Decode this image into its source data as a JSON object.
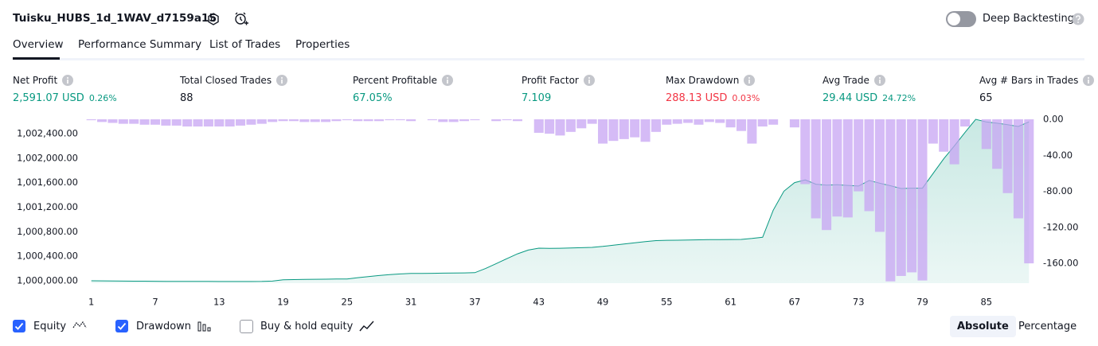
{
  "header": {
    "title": "Tuisku_HUBS_1d_1WAV_d7159a15",
    "toggle_label": "Deep Backtesting",
    "toggle_on": false
  },
  "tabs": [
    {
      "label": "Overview",
      "active": true
    },
    {
      "label": "Performance Summary",
      "active": false
    },
    {
      "label": "List of Trades",
      "active": false
    },
    {
      "label": "Properties",
      "active": false
    }
  ],
  "metrics": [
    {
      "label": "Net Profit",
      "value": "2,591.07 USD",
      "sub": "0.26%",
      "color": "#089981"
    },
    {
      "label": "Total Closed Trades",
      "value": "88",
      "color": "#131722"
    },
    {
      "label": "Percent Profitable",
      "value": "67.05%",
      "color": "#089981"
    },
    {
      "label": "Profit Factor",
      "value": "7.109",
      "color": "#089981"
    },
    {
      "label": "Max Drawdown",
      "value": "288.13 USD",
      "sub": "0.03%",
      "color": "#f23645"
    },
    {
      "label": "Avg Trade",
      "value": "29.44 USD",
      "sub": "24.72%",
      "color": "#089981"
    },
    {
      "label": "Avg # Bars in Trades",
      "value": "65",
      "color": "#131722"
    }
  ],
  "chart_data": {
    "type": "line",
    "x": [
      1,
      2,
      3,
      4,
      5,
      6,
      7,
      8,
      9,
      10,
      11,
      12,
      13,
      14,
      15,
      16,
      17,
      18,
      19,
      20,
      21,
      22,
      23,
      24,
      25,
      26,
      27,
      28,
      29,
      30,
      31,
      32,
      33,
      34,
      35,
      36,
      37,
      38,
      39,
      40,
      41,
      42,
      43,
      44,
      45,
      46,
      47,
      48,
      49,
      50,
      51,
      52,
      53,
      54,
      55,
      56,
      57,
      58,
      59,
      60,
      61,
      62,
      63,
      64,
      65,
      66,
      67,
      68,
      69,
      70,
      71,
      72,
      73,
      74,
      75,
      76,
      77,
      78,
      79,
      80,
      81,
      82,
      83,
      84,
      85,
      86,
      87,
      88,
      89
    ],
    "series": [
      {
        "name": "Equity",
        "color": "#089981",
        "checked": true,
        "axis": "y",
        "values": [
          1000000,
          999998,
          999996,
          999995,
          999994,
          999993,
          999992,
          999991,
          999990,
          999990,
          999989,
          999989,
          999988,
          999988,
          999988,
          999988,
          999989,
          999995,
          1000015,
          1000020,
          1000022,
          1000024,
          1000026,
          1000028,
          1000030,
          1000050,
          1000068,
          1000085,
          1000100,
          1000112,
          1000120,
          1000121,
          1000122,
          1000124,
          1000126,
          1000128,
          1000132,
          1000200,
          1000280,
          1000360,
          1000440,
          1000500,
          1000532,
          1000528,
          1000530,
          1000535,
          1000540,
          1000545,
          1000560,
          1000580,
          1000600,
          1000620,
          1000640,
          1000655,
          1000660,
          1000662,
          1000665,
          1000668,
          1000670,
          1000672,
          1000673,
          1000674,
          1000690,
          1000710,
          1001150,
          1001460,
          1001600,
          1001646,
          1001575,
          1001560,
          1001565,
          1001555,
          1001545,
          1001635,
          1001590,
          1001550,
          1001505,
          1001510,
          1001510,
          1001750,
          1001990,
          1002200,
          1002420,
          1002633,
          1002590,
          1002570,
          1002545,
          1002516,
          1002591
        ]
      },
      {
        "name": "Drawdown",
        "color": "#c7a4f3",
        "checked": true,
        "axis": "y2",
        "type": "bar",
        "values": [
          -1,
          -3,
          -4,
          -5,
          -5,
          -6,
          -6,
          -7,
          -7,
          -8,
          -8,
          -8,
          -8,
          -8,
          -7,
          -6,
          -5,
          -3,
          -2,
          -2,
          -3,
          -3,
          -3,
          -2,
          -1,
          -2,
          -2,
          -2,
          -1,
          -1,
          -2,
          0,
          -1,
          -3,
          -3,
          -2,
          -1,
          0,
          -2,
          -1,
          -2,
          0,
          -15,
          -16,
          -18,
          -14,
          -10,
          -5,
          -27,
          -24,
          -22,
          -20,
          -25,
          -14,
          -6,
          -5,
          -4,
          -6,
          -3,
          -4,
          -9,
          -13,
          -27,
          -8,
          -6,
          0,
          -9,
          -72,
          -110,
          -123,
          -108,
          -109,
          -80,
          -102,
          -125,
          -180,
          -174,
          -170,
          -179,
          -27,
          -36,
          -50,
          -8,
          0,
          -33,
          -55,
          -82,
          -110,
          -160
        ]
      }
    ],
    "xlim": [
      0.5,
      89.5
    ],
    "xticks": [
      1,
      7,
      13,
      19,
      25,
      31,
      37,
      43,
      49,
      55,
      61,
      67,
      73,
      79,
      85
    ],
    "ylim": [
      999961,
      1002698
    ],
    "yticks": [
      {
        "value": 1000000,
        "label": "1,000,000.00"
      },
      {
        "value": 1000400,
        "label": "1,000,400.00"
      },
      {
        "value": 1000800,
        "label": "1,000,800.00"
      },
      {
        "value": 1001200,
        "label": "1,001,200.00"
      },
      {
        "value": 1001600,
        "label": "1,001,600.00"
      },
      {
        "value": 1002000,
        "label": "1,002,000.00"
      },
      {
        "value": 1002400,
        "label": "1,002,400.00"
      }
    ],
    "y2lim": [
      -182,
      4.4
    ],
    "y2ticks": [
      {
        "value": 0,
        "label": "0.00"
      },
      {
        "value": -40,
        "label": "-40.00"
      },
      {
        "value": -80,
        "label": "-80.00"
      },
      {
        "value": -120,
        "label": "-120.00"
      },
      {
        "value": -160,
        "label": "-160.00"
      }
    ]
  },
  "legend_extra": [
    {
      "label": "Buy & hold equity",
      "checked": false
    }
  ],
  "modes": [
    {
      "label": "Absolute",
      "active": true
    },
    {
      "label": "Percentage",
      "active": false
    }
  ]
}
